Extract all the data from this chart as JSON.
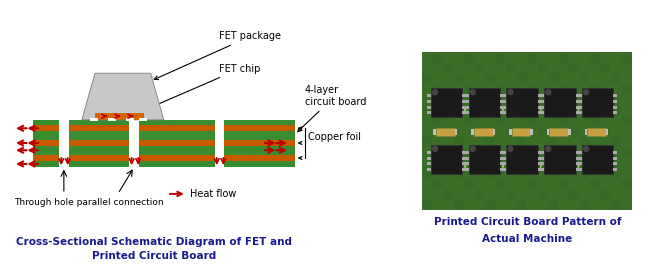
{
  "bg_color": "#ffffff",
  "green_color": "#3a8c30",
  "orange_color": "#c85a00",
  "white_color": "#ffffff",
  "gray_light": "#c8c8c8",
  "gray_dark": "#888888",
  "orange_chip": "#d4660a",
  "red_arrow": "#bb0000",
  "pcb_green": "#3a6e28",
  "pcb_dark": "#2a5018",
  "ic_black": "#1a1a1a",
  "ic_pin": "#aaaaaa",
  "resistor_color": "#c8a040",
  "caption_left_line1": "Cross-Sectional Schematic Diagram of FET and",
  "caption_left_line2": "Printed Circuit Board",
  "caption_right_line1": "Printed Circuit Board Pattern of",
  "caption_right_line2": "Actual Machine",
  "label_fet_package": "FET package",
  "label_fet_chip": "FET chip",
  "label_4layer": "4-layer\ncircuit board",
  "label_copper": "Copper foil",
  "label_through_hole": "Through hole parallel connection",
  "label_heat_flow": "Heat flow",
  "title_color": "#1a1a8c",
  "annotation_color": "#000000"
}
